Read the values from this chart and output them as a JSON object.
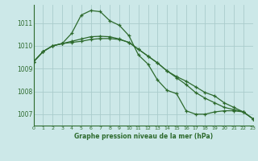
{
  "background_color": "#cce8e8",
  "grid_color": "#aacccc",
  "line_color": "#2d6a2d",
  "xlabel": "Graphe pression niveau de la mer (hPa)",
  "ylim": [
    1006.5,
    1011.8
  ],
  "xlim": [
    0,
    23
  ],
  "yticks": [
    1007,
    1008,
    1009,
    1010,
    1011
  ],
  "xticks": [
    0,
    1,
    2,
    3,
    4,
    5,
    6,
    7,
    8,
    9,
    10,
    11,
    12,
    13,
    14,
    15,
    16,
    17,
    18,
    19,
    20,
    21,
    22,
    23
  ],
  "series": [
    [
      1009.3,
      1009.75,
      1010.0,
      1010.1,
      1010.55,
      1011.35,
      1011.55,
      1011.5,
      1011.1,
      1010.9,
      1010.45,
      1009.6,
      1009.2,
      1008.5,
      1008.05,
      1007.9,
      1007.15,
      1007.0,
      1007.0,
      1007.1,
      1007.15,
      1007.15,
      1007.1,
      1006.8
    ],
    [
      1009.3,
      1009.75,
      1010.0,
      1010.1,
      1010.2,
      1010.3,
      1010.4,
      1010.42,
      1010.4,
      1010.3,
      1010.15,
      1009.85,
      1009.55,
      1009.25,
      1008.9,
      1008.65,
      1008.45,
      1008.2,
      1007.95,
      1007.8,
      1007.5,
      1007.3,
      1007.1,
      1006.8
    ],
    [
      1009.3,
      1009.75,
      1010.0,
      1010.1,
      1010.15,
      1010.2,
      1010.28,
      1010.32,
      1010.32,
      1010.28,
      1010.15,
      1009.85,
      1009.55,
      1009.25,
      1008.9,
      1008.6,
      1008.3,
      1007.95,
      1007.7,
      1007.5,
      1007.3,
      1007.2,
      1007.1,
      1006.8
    ]
  ]
}
